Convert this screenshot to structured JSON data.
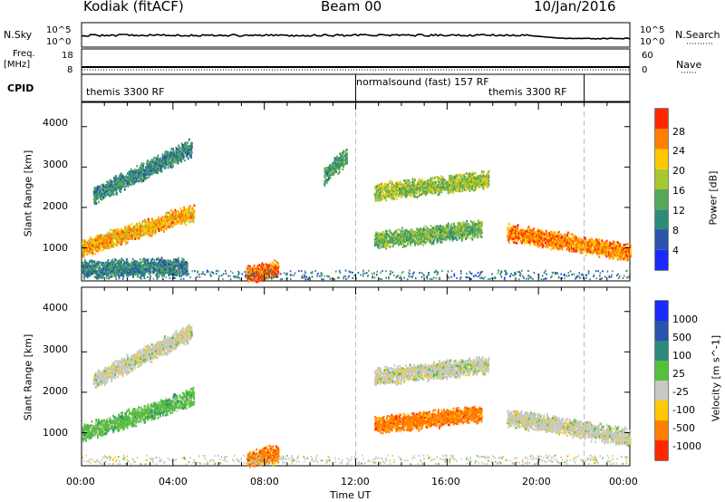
{
  "header": {
    "station": "Kodiak (fitACF)",
    "beam": "Beam 00",
    "date": "10/Jan/2016"
  },
  "nsky_panel": {
    "left_label": "N.Sky",
    "right_label": "N.Search",
    "left_ticks": [
      "10^5",
      "10^0"
    ],
    "right_ticks": [
      "10^5",
      "10^0"
    ]
  },
  "freq_panel": {
    "left_label_1": "Freq.",
    "left_label_2": "[MHz]",
    "left_ticks": [
      "18",
      "8"
    ],
    "right_label": "Nave",
    "right_ticks": [
      "60",
      "0"
    ]
  },
  "cpid_panel": {
    "label": "CPID",
    "modes": [
      {
        "name": "themis 3300 RF",
        "start_hour": 0,
        "end_hour": 12
      },
      {
        "name": "normalsound (fast) 157 RF",
        "start_hour": 12,
        "end_hour": 22
      },
      {
        "name": "themis 3300 RF",
        "start_hour": 22,
        "end_hour": 24
      }
    ]
  },
  "x_axis": {
    "label": "Time UT",
    "ticks": [
      "00:00",
      "04:00",
      "08:00",
      "12:00",
      "16:00",
      "20:00",
      "00:00"
    ],
    "range_hours": [
      0,
      24
    ]
  },
  "chart_data": [
    {
      "type": "heatmap",
      "quantity": "Power",
      "ylabel": "Slant Range [km]",
      "ylim": [
        180,
        4600
      ],
      "y_ticks": [
        1000,
        2000,
        3000,
        4000
      ],
      "colorbar_label": "Power [dB]",
      "colorbar_ticks": [
        "4",
        "8",
        "12",
        "16",
        "20",
        "24",
        "28"
      ],
      "colorbar_range": [
        0,
        30
      ],
      "colors": [
        "#1a2aff",
        "#2a53ad",
        "#2e8a7a",
        "#55a85a",
        "#a8c832",
        "#ffc800",
        "#ff8000",
        "#ff2800"
      ],
      "scatter_features": [
        {
          "t_start": 0.0,
          "t_end": 4.9,
          "range_start": 1000,
          "range_end": 1900,
          "level": 22
        },
        {
          "t_start": 0.5,
          "t_end": 4.8,
          "range_start": 2300,
          "range_end": 3500,
          "level": 10
        },
        {
          "t_start": 0.0,
          "t_end": 4.6,
          "range_start": 500,
          "range_end": 550,
          "level": 9
        },
        {
          "t_start": 7.2,
          "t_end": 8.6,
          "range_start": 350,
          "range_end": 500,
          "level": 26
        },
        {
          "t_start": 10.6,
          "t_end": 11.6,
          "range_start": 2800,
          "range_end": 3300,
          "level": 12
        },
        {
          "t_start": 12.8,
          "t_end": 17.8,
          "range_start": 2400,
          "range_end": 2700,
          "level": 16
        },
        {
          "t_start": 12.8,
          "t_end": 17.5,
          "range_start": 1200,
          "range_end": 1500,
          "level": 14
        },
        {
          "t_start": 18.6,
          "t_end": 24.0,
          "range_start": 1400,
          "range_end": 900,
          "level": 24
        }
      ]
    },
    {
      "type": "heatmap",
      "quantity": "Velocity",
      "ylabel": "Slant Range [km]",
      "ylim": [
        180,
        4600
      ],
      "y_ticks": [
        1000,
        2000,
        3000,
        4000
      ],
      "colorbar_label": "Velocity [m s^-1]",
      "colorbar_ticks": [
        "1000",
        "500",
        "100",
        "25",
        "-25",
        "-100",
        "-500",
        "-1000"
      ],
      "colors": [
        "#1a2aff",
        "#2a53ad",
        "#2e8a7a",
        "#55c03a",
        "#c8c8c0",
        "#ffc800",
        "#ff8000",
        "#ff2800"
      ],
      "scatter_features": [
        {
          "t_start": 0.0,
          "t_end": 4.9,
          "range_start": 1000,
          "range_end": 1900,
          "level": 25
        },
        {
          "t_start": 0.5,
          "t_end": 4.8,
          "range_start": 2300,
          "range_end": 3500,
          "level": 0
        },
        {
          "t_start": 7.2,
          "t_end": 8.6,
          "range_start": 350,
          "range_end": 500,
          "level": -100
        },
        {
          "t_start": 12.8,
          "t_end": 17.8,
          "range_start": 2400,
          "range_end": 2700,
          "level": 0
        },
        {
          "t_start": 12.8,
          "t_end": 17.5,
          "range_start": 1200,
          "range_end": 1500,
          "level": -100
        },
        {
          "t_start": 18.6,
          "t_end": 24.0,
          "range_start": 1400,
          "range_end": 900,
          "level": 0
        }
      ]
    }
  ]
}
